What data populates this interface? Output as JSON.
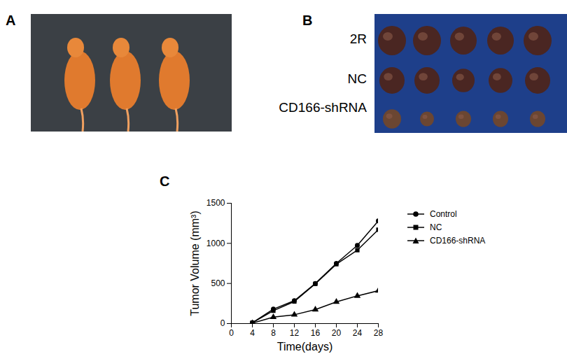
{
  "chart_data": {
    "type": "line",
    "x_label": "Time(days)",
    "y_label": "Tumor Volume (mm³)",
    "x": [
      4,
      8,
      12,
      16,
      20,
      24,
      28
    ],
    "series": [
      {
        "name": "Control",
        "color": "#000000",
        "marker": "circle",
        "values": [
          10,
          180,
          285,
          500,
          750,
          975,
          1280
        ]
      },
      {
        "name": "NC",
        "color": "#000000",
        "marker": "square",
        "values": [
          10,
          160,
          275,
          495,
          740,
          915,
          1170
        ]
      },
      {
        "name": "CD166-shRNA",
        "color": "#000000",
        "marker": "triangle",
        "values": [
          5,
          80,
          110,
          175,
          270,
          345,
          410
        ]
      }
    ],
    "xlim": [
      0,
      28
    ],
    "xticks": [
      0,
      4,
      8,
      12,
      16,
      20,
      24,
      28
    ],
    "ylim": [
      0,
      1500
    ],
    "yticks": [
      0,
      500,
      1000,
      1500
    ],
    "grid": false,
    "legend": "right"
  },
  "panel_labels": [
    "A",
    "B",
    "C"
  ],
  "photo_b_row_labels": [
    "2R",
    "NC",
    "CD166-shRNA"
  ]
}
